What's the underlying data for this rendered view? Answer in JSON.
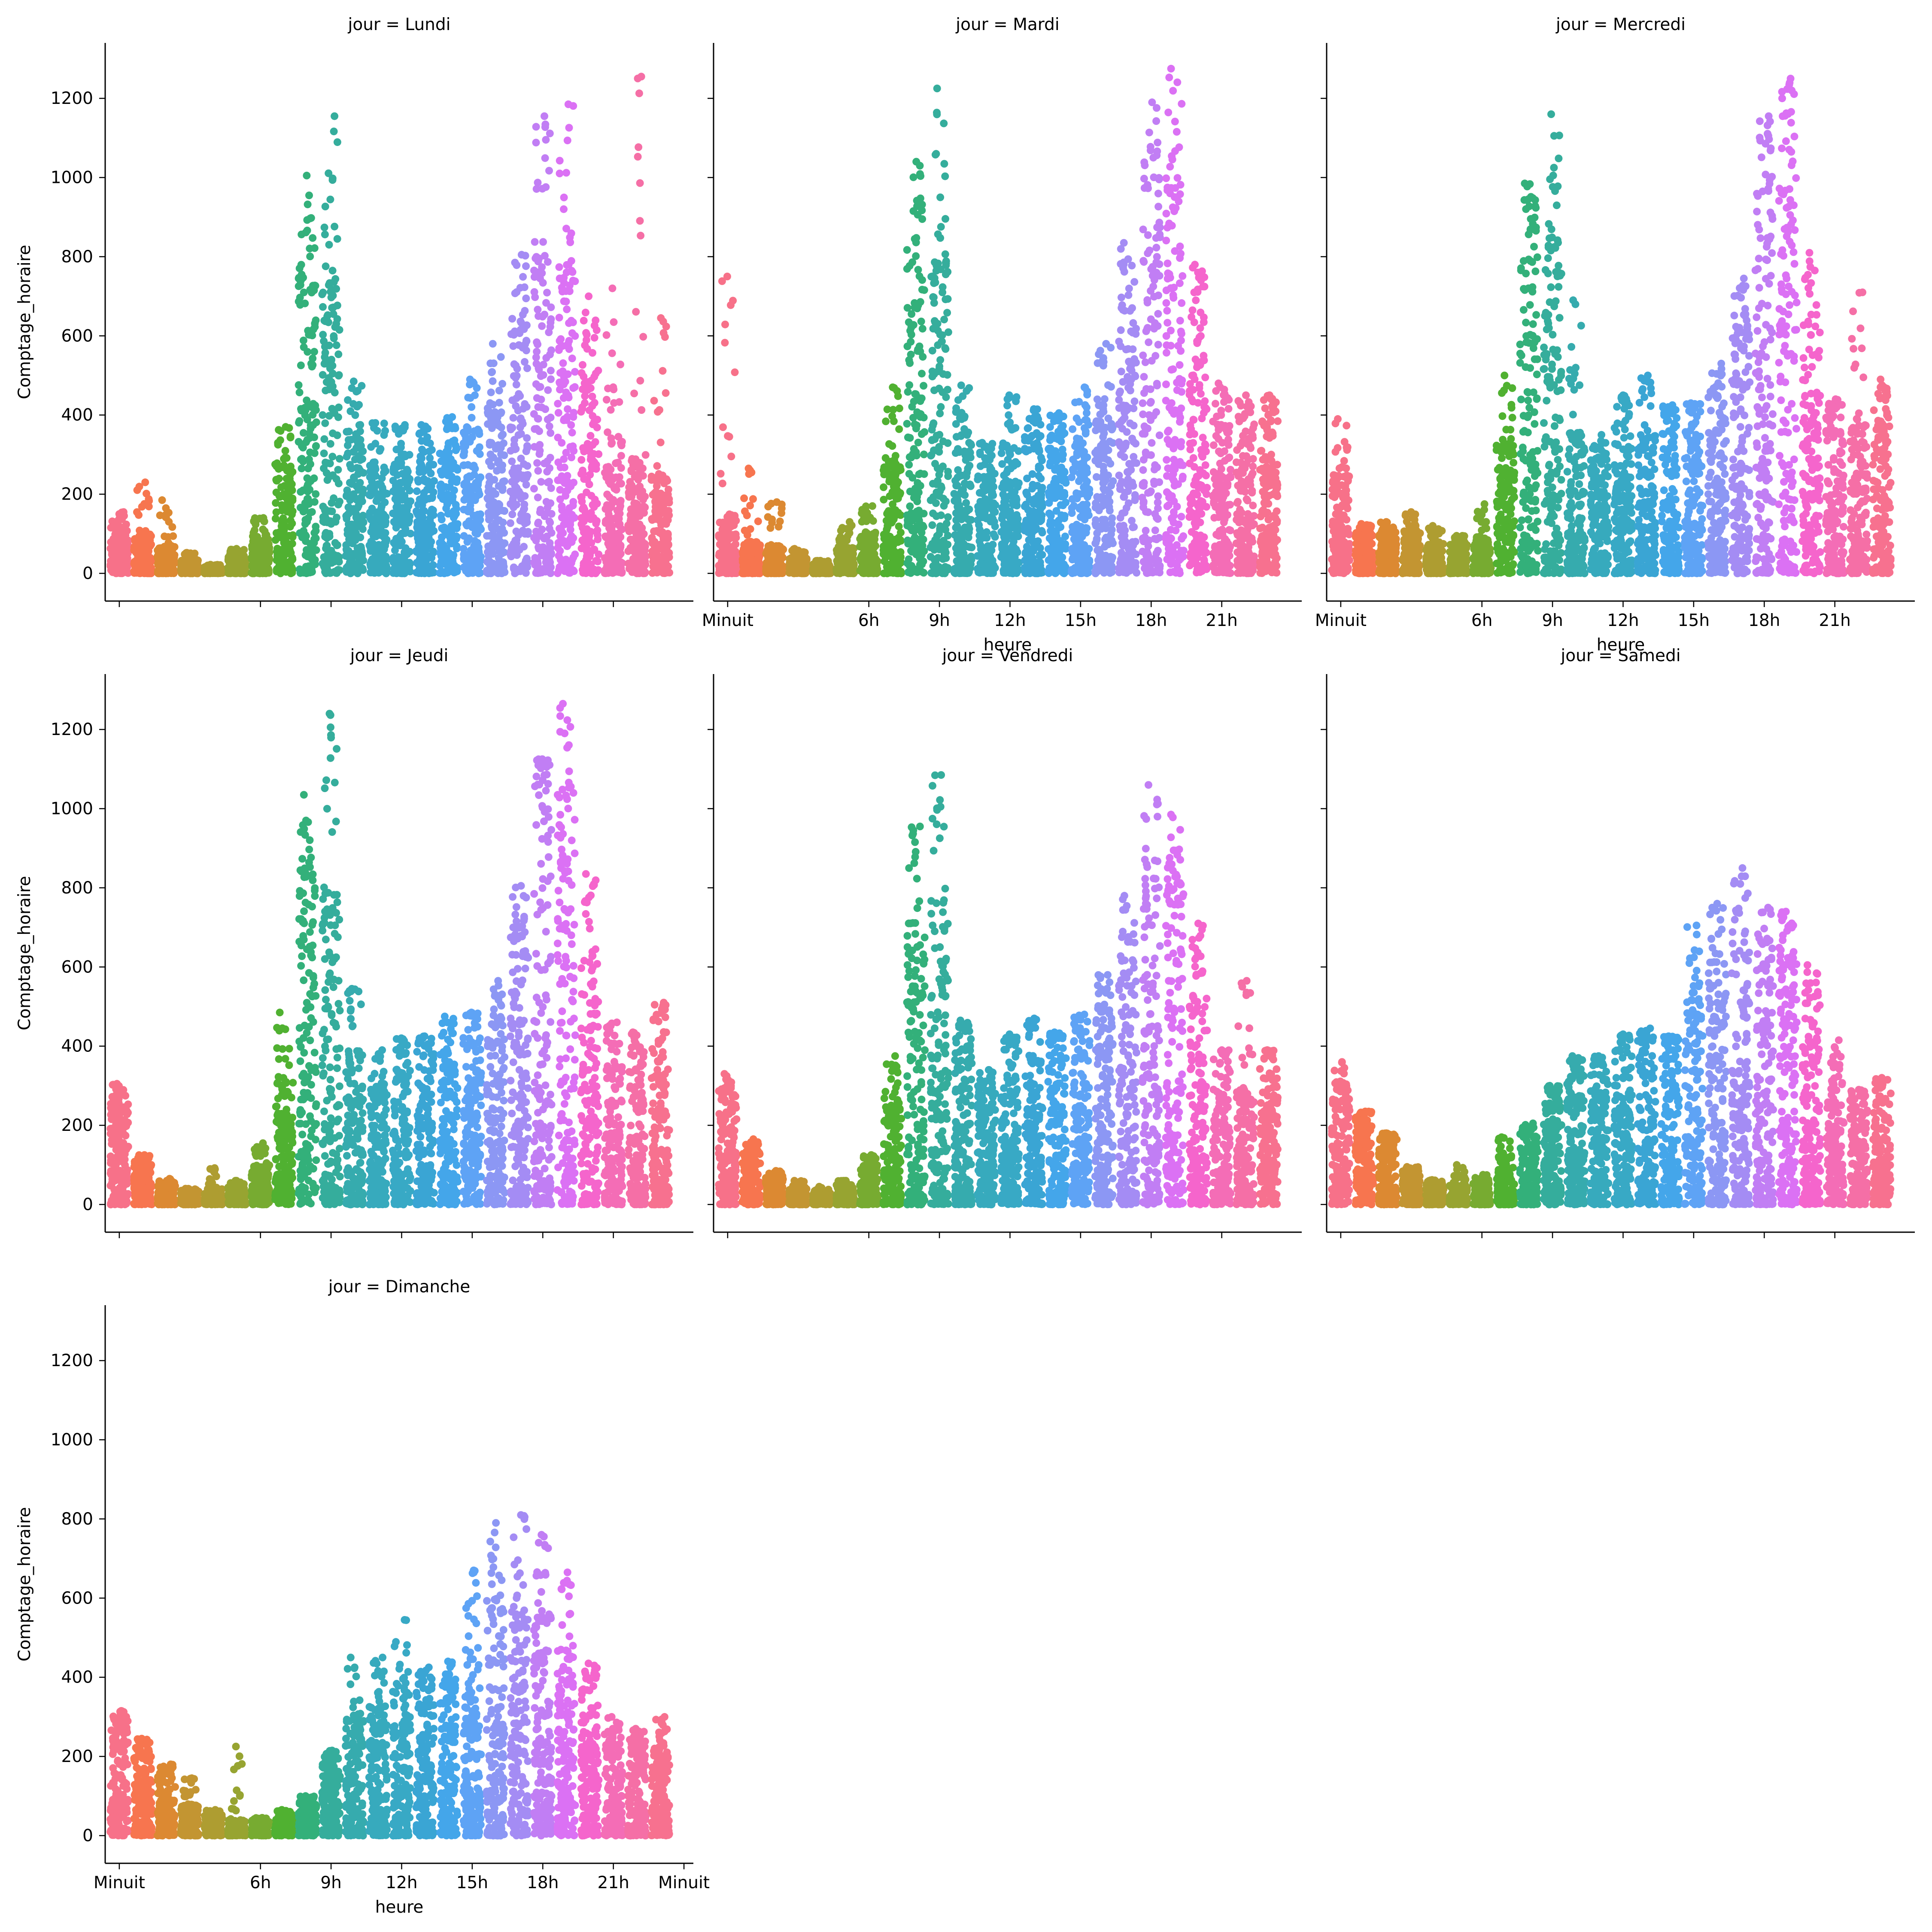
{
  "chart_data": {
    "type": "scatter",
    "subtype": "strip",
    "facet_variable": "jour",
    "xlabel": "heure",
    "ylabel": "Comptage_horaire",
    "ylim": [
      -70,
      1340
    ],
    "yticks": [
      0,
      200,
      400,
      600,
      800,
      1000,
      1200
    ],
    "hours": [
      0,
      1,
      2,
      3,
      4,
      5,
      6,
      7,
      8,
      9,
      10,
      11,
      12,
      13,
      14,
      15,
      16,
      17,
      18,
      19,
      20,
      21,
      22,
      23
    ],
    "xticks": [
      {
        "hour": 0,
        "label": "Minuit"
      },
      {
        "hour": 6,
        "label": "6h"
      },
      {
        "hour": 9,
        "label": "9h"
      },
      {
        "hour": 12,
        "label": "12h"
      },
      {
        "hour": 15,
        "label": "15h"
      },
      {
        "hour": 18,
        "label": "18h"
      },
      {
        "hour": 21,
        "label": "21h"
      },
      {
        "hour": 24,
        "label": "Minuit"
      }
    ],
    "hour_colors": [
      "#f77189",
      "#f7754f",
      "#dc8932",
      "#c39532",
      "#ae9d31",
      "#97a431",
      "#77ab31",
      "#50b131",
      "#33b07a",
      "#35ad9c",
      "#36abae",
      "#37aabd",
      "#38a9c5",
      "#3aa5d4",
      "#44a6ea",
      "#5ea3f5",
      "#8c97f4",
      "#a48cf4",
      "#c17ef4",
      "#db71f4",
      "#f565cc",
      "#f46db6",
      "#f56fa6",
      "#f7718f"
    ],
    "facets": [
      {
        "title": "jour = Lundi",
        "max": [
          155,
          230,
          185,
          52,
          22,
          62,
          140,
          370,
          1005,
          1155,
          485,
          380,
          375,
          375,
          395,
          490,
          580,
          805,
          1155,
          1185,
          700,
          720,
          1255,
          645
        ],
        "bulk": [
          120,
          100,
          70,
          35,
          16,
          45,
          100,
          280,
          780,
          780,
          360,
          280,
          300,
          320,
          330,
          360,
          420,
          650,
          850,
          800,
          550,
          350,
          300,
          250
        ]
      },
      {
        "title": "jour = Mardi",
        "max": [
          750,
          265,
          180,
          62,
          32,
          130,
          170,
          470,
          1040,
          1225,
          475,
          330,
          450,
          415,
          405,
          470,
          580,
          835,
          1190,
          1275,
          780,
          480,
          450,
          450
        ],
        "bulk": [
          150,
          80,
          70,
          40,
          25,
          75,
          105,
          300,
          850,
          820,
          380,
          290,
          330,
          350,
          360,
          380,
          430,
          680,
          1000,
          1000,
          680,
          400,
          380,
          400
        ]
      },
      {
        "title": "jour = Mercredi",
        "max": [
          390,
          125,
          130,
          155,
          120,
          95,
          175,
          500,
          985,
          1160,
          690,
          350,
          450,
          500,
          425,
          430,
          530,
          745,
          1155,
          1250,
          810,
          440,
          710,
          490
        ],
        "bulk": [
          250,
          110,
          110,
          110,
          80,
          75,
          95,
          330,
          900,
          850,
          360,
          290,
          400,
          400,
          400,
          400,
          450,
          650,
          1050,
          1150,
          650,
          400,
          380,
          430
        ]
      },
      {
        "title": "jour = Jeudi",
        "max": [
          305,
          125,
          65,
          40,
          92,
          60,
          155,
          485,
          1035,
          1240,
          545,
          390,
          420,
          425,
          475,
          485,
          565,
          805,
          1125,
          1265,
          835,
          460,
          435,
          510
        ],
        "bulk": [
          270,
          110,
          55,
          35,
          40,
          45,
          100,
          320,
          850,
          830,
          400,
          300,
          390,
          400,
          400,
          430,
          470,
          700,
          1100,
          1050,
          650,
          400,
          380,
          440
        ]
      },
      {
        "title": "jour = Vendredi",
        "max": [
          330,
          165,
          85,
          60,
          45,
          60,
          125,
          375,
          955,
          1085,
          465,
          340,
          430,
          470,
          435,
          480,
          580,
          780,
          1060,
          985,
          710,
          390,
          565,
          390
        ],
        "bulk": [
          290,
          140,
          75,
          45,
          30,
          50,
          100,
          280,
          720,
          780,
          420,
          300,
          400,
          400,
          420,
          430,
          500,
          650,
          850,
          850,
          600,
          380,
          300,
          350
        ]
      },
      {
        "title": "jour = Samedi",
        "max": [
          360,
          235,
          180,
          95,
          62,
          100,
          75,
          170,
          205,
          300,
          375,
          375,
          430,
          445,
          425,
          705,
          760,
          850,
          750,
          740,
          605,
          415,
          290,
          320
        ],
        "bulk": [
          300,
          220,
          170,
          85,
          55,
          50,
          60,
          120,
          180,
          270,
          340,
          350,
          400,
          420,
          420,
          550,
          620,
          700,
          650,
          650,
          520,
          340,
          270,
          300
        ]
      },
      {
        "title": "jour = Dimanche",
        "max": [
          315,
          245,
          180,
          145,
          65,
          225,
          45,
          65,
          100,
          215,
          450,
          450,
          545,
          425,
          440,
          670,
          790,
          810,
          760,
          665,
          435,
          300,
          270,
          300
        ],
        "bulk": [
          290,
          230,
          160,
          80,
          60,
          40,
          40,
          55,
          95,
          180,
          300,
          330,
          380,
          380,
          380,
          480,
          600,
          600,
          580,
          500,
          380,
          260,
          240,
          230
        ]
      }
    ]
  }
}
